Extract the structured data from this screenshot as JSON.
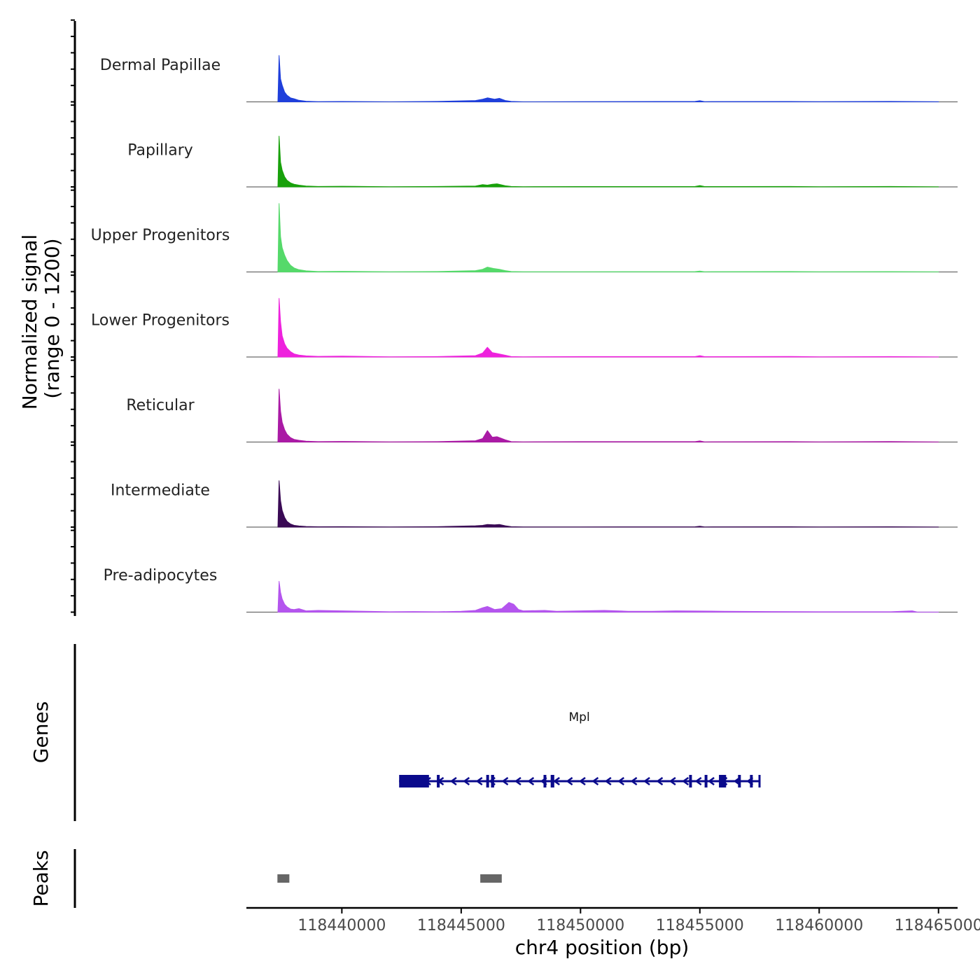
{
  "chart_data": {
    "type": "area",
    "ylabel_line1": "Normalized signal",
    "ylabel_line2": "(range 0 - 1200)",
    "xlabel": "chr4 position (bp)",
    "chromosome": "chr4",
    "xlim": [
      118436000,
      118465800
    ],
    "ylim": [
      0,
      1200
    ],
    "xticks": [
      118440000,
      118445000,
      118450000,
      118455000,
      118460000,
      118465000
    ],
    "xtick_labels": [
      "118440000",
      "118445000",
      "118450000",
      "118455000",
      "118460000",
      "118465000"
    ],
    "tracks": [
      {
        "name": "Dermal Papillae",
        "color": "#1f3fdb"
      },
      {
        "name": "Papillary",
        "color": "#18a10b"
      },
      {
        "name": "Upper Progenitors",
        "color": "#55d96a"
      },
      {
        "name": "Lower Progenitors",
        "color": "#ee22dd"
      },
      {
        "name": "Reticular",
        "color": "#aa1aa5"
      },
      {
        "name": "Intermediate",
        "color": "#3a0a55"
      },
      {
        "name": "Pre-adipocytes",
        "color": "#b455ee"
      }
    ],
    "signal_points": [
      [
        [
          118437320,
          0
        ],
        [
          118437370,
          1050
        ],
        [
          118437430,
          520
        ],
        [
          118437500,
          380
        ],
        [
          118437600,
          220
        ],
        [
          118437700,
          150
        ],
        [
          118437850,
          90
        ],
        [
          118438000,
          70
        ],
        [
          118438200,
          35
        ],
        [
          118438500,
          15
        ],
        [
          118439000,
          5
        ],
        [
          118440000,
          8
        ],
        [
          118442000,
          0
        ],
        [
          118444000,
          10
        ],
        [
          118445600,
          30
        ],
        [
          118445900,
          60
        ],
        [
          118446100,
          90
        ],
        [
          118446400,
          60
        ],
        [
          118446600,
          80
        ],
        [
          118446850,
          30
        ],
        [
          118447100,
          10
        ],
        [
          118447600,
          0
        ],
        [
          118450000,
          5
        ],
        [
          118454800,
          10
        ],
        [
          118455000,
          25
        ],
        [
          118455200,
          5
        ],
        [
          118458800,
          8
        ],
        [
          118460000,
          5
        ],
        [
          118463000,
          10
        ],
        [
          118465000,
          2
        ]
      ],
      [
        [
          118437320,
          0
        ],
        [
          118437370,
          1150
        ],
        [
          118437430,
          560
        ],
        [
          118437500,
          380
        ],
        [
          118437600,
          230
        ],
        [
          118437700,
          150
        ],
        [
          118437850,
          90
        ],
        [
          118438000,
          60
        ],
        [
          118438200,
          40
        ],
        [
          118438500,
          20
        ],
        [
          118439000,
          10
        ],
        [
          118440000,
          15
        ],
        [
          118442000,
          5
        ],
        [
          118444000,
          10
        ],
        [
          118445600,
          20
        ],
        [
          118445900,
          50
        ],
        [
          118446100,
          40
        ],
        [
          118446300,
          60
        ],
        [
          118446500,
          70
        ],
        [
          118446850,
          25
        ],
        [
          118447100,
          10
        ],
        [
          118447600,
          5
        ],
        [
          118450000,
          8
        ],
        [
          118454800,
          10
        ],
        [
          118455000,
          30
        ],
        [
          118455200,
          8
        ],
        [
          118458800,
          10
        ],
        [
          118460000,
          5
        ],
        [
          118463000,
          10
        ],
        [
          118465000,
          2
        ]
      ],
      [
        [
          118437320,
          0
        ],
        [
          118437370,
          1550
        ],
        [
          118437430,
          800
        ],
        [
          118437500,
          550
        ],
        [
          118437600,
          380
        ],
        [
          118437700,
          260
        ],
        [
          118437850,
          150
        ],
        [
          118438000,
          90
        ],
        [
          118438200,
          50
        ],
        [
          118438500,
          25
        ],
        [
          118439000,
          10
        ],
        [
          118440000,
          15
        ],
        [
          118442000,
          5
        ],
        [
          118444000,
          10
        ],
        [
          118445600,
          30
        ],
        [
          118445900,
          60
        ],
        [
          118446100,
          110
        ],
        [
          118446350,
          80
        ],
        [
          118446600,
          60
        ],
        [
          118446850,
          30
        ],
        [
          118447100,
          10
        ],
        [
          118447600,
          5
        ],
        [
          118450000,
          5
        ],
        [
          118454800,
          8
        ],
        [
          118455000,
          20
        ],
        [
          118455200,
          5
        ],
        [
          118458800,
          10
        ],
        [
          118460000,
          5
        ],
        [
          118463000,
          8
        ],
        [
          118465000,
          2
        ]
      ],
      [
        [
          118437320,
          0
        ],
        [
          118437370,
          1330
        ],
        [
          118437430,
          800
        ],
        [
          118437500,
          480
        ],
        [
          118437600,
          300
        ],
        [
          118437700,
          200
        ],
        [
          118437850,
          120
        ],
        [
          118438000,
          70
        ],
        [
          118438200,
          45
        ],
        [
          118438500,
          25
        ],
        [
          118439000,
          15
        ],
        [
          118440000,
          20
        ],
        [
          118442000,
          5
        ],
        [
          118444000,
          10
        ],
        [
          118445600,
          30
        ],
        [
          118445900,
          90
        ],
        [
          118446100,
          220
        ],
        [
          118446300,
          100
        ],
        [
          118446500,
          80
        ],
        [
          118446850,
          40
        ],
        [
          118447100,
          10
        ],
        [
          118447600,
          5
        ],
        [
          118450000,
          10
        ],
        [
          118454800,
          10
        ],
        [
          118455000,
          30
        ],
        [
          118455200,
          8
        ],
        [
          118458800,
          12
        ],
        [
          118460000,
          5
        ],
        [
          118463000,
          10
        ],
        [
          118465000,
          2
        ]
      ],
      [
        [
          118437320,
          0
        ],
        [
          118437370,
          1200
        ],
        [
          118437430,
          700
        ],
        [
          118437500,
          450
        ],
        [
          118437600,
          280
        ],
        [
          118437700,
          180
        ],
        [
          118437850,
          100
        ],
        [
          118438000,
          60
        ],
        [
          118438200,
          40
        ],
        [
          118438500,
          20
        ],
        [
          118439000,
          10
        ],
        [
          118440000,
          15
        ],
        [
          118442000,
          5
        ],
        [
          118444000,
          10
        ],
        [
          118445600,
          30
        ],
        [
          118445900,
          80
        ],
        [
          118446100,
          260
        ],
        [
          118446300,
          110
        ],
        [
          118446500,
          120
        ],
        [
          118446850,
          50
        ],
        [
          118447100,
          10
        ],
        [
          118447600,
          5
        ],
        [
          118450000,
          10
        ],
        [
          118454800,
          10
        ],
        [
          118455000,
          25
        ],
        [
          118455200,
          5
        ],
        [
          118458800,
          10
        ],
        [
          118460000,
          5
        ],
        [
          118463000,
          12
        ],
        [
          118465000,
          2
        ]
      ],
      [
        [
          118437320,
          0
        ],
        [
          118437370,
          1050
        ],
        [
          118437430,
          600
        ],
        [
          118437500,
          380
        ],
        [
          118437600,
          220
        ],
        [
          118437700,
          130
        ],
        [
          118437850,
          70
        ],
        [
          118438000,
          40
        ],
        [
          118438200,
          25
        ],
        [
          118438500,
          15
        ],
        [
          118439000,
          8
        ],
        [
          118440000,
          10
        ],
        [
          118442000,
          5
        ],
        [
          118444000,
          10
        ],
        [
          118445600,
          30
        ],
        [
          118445900,
          40
        ],
        [
          118446100,
          60
        ],
        [
          118446400,
          50
        ],
        [
          118446600,
          60
        ],
        [
          118446850,
          30
        ],
        [
          118447100,
          10
        ],
        [
          118447600,
          5
        ],
        [
          118450000,
          5
        ],
        [
          118454800,
          8
        ],
        [
          118455000,
          20
        ],
        [
          118455200,
          5
        ],
        [
          118458800,
          8
        ],
        [
          118460000,
          5
        ],
        [
          118463000,
          8
        ],
        [
          118465000,
          2
        ]
      ],
      [
        [
          118437320,
          0
        ],
        [
          118437370,
          700
        ],
        [
          118437430,
          450
        ],
        [
          118437500,
          300
        ],
        [
          118437600,
          180
        ],
        [
          118437700,
          120
        ],
        [
          118437850,
          70
        ],
        [
          118438000,
          60
        ],
        [
          118438200,
          80
        ],
        [
          118438500,
          30
        ],
        [
          118439000,
          40
        ],
        [
          118440000,
          30
        ],
        [
          118441000,
          20
        ],
        [
          118442000,
          10
        ],
        [
          118443000,
          15
        ],
        [
          118444000,
          10
        ],
        [
          118445000,
          20
        ],
        [
          118445600,
          40
        ],
        [
          118445900,
          100
        ],
        [
          118446100,
          130
        ],
        [
          118446400,
          60
        ],
        [
          118446700,
          80
        ],
        [
          118447000,
          220
        ],
        [
          118447200,
          180
        ],
        [
          118447400,
          60
        ],
        [
          118447600,
          30
        ],
        [
          118448500,
          40
        ],
        [
          118449000,
          20
        ],
        [
          118450000,
          30
        ],
        [
          118451000,
          40
        ],
        [
          118452000,
          20
        ],
        [
          118453000,
          20
        ],
        [
          118454000,
          30
        ],
        [
          118455000,
          25
        ],
        [
          118456000,
          20
        ],
        [
          118458000,
          15
        ],
        [
          118460000,
          10
        ],
        [
          118463000,
          10
        ],
        [
          118463900,
          30
        ],
        [
          118464100,
          5
        ],
        [
          118465000,
          2
        ]
      ]
    ],
    "genes_label": "Genes",
    "gene": {
      "name": "Mpl",
      "strand": "-",
      "start": 118442400,
      "end": 118457500,
      "color": "#0a0a8c",
      "exons": [
        [
          118442400,
          118443650
        ],
        [
          118443980,
          118444100
        ],
        [
          118446050,
          118446150
        ],
        [
          118446250,
          118446380
        ],
        [
          118448450,
          118448550
        ],
        [
          118448750,
          118448900
        ],
        [
          118454550,
          118454650
        ],
        [
          118455200,
          118455300
        ],
        [
          118455800,
          118456100
        ],
        [
          118456600,
          118456700
        ],
        [
          118457100,
          118457200
        ]
      ]
    },
    "peaks_label": "Peaks",
    "peaks": [
      [
        118437300,
        118437800
      ],
      [
        118445800,
        118446700
      ]
    ]
  }
}
